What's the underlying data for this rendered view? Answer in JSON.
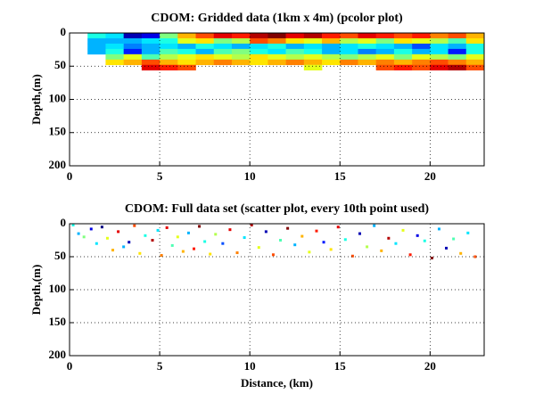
{
  "chart_data": [
    {
      "type": "pcolor",
      "title": "CDOM: Gridded data (1km x 4m) (pcolor plot)",
      "ylabel": "Depth,(m)",
      "xlim": [
        0,
        23
      ],
      "ylim": [
        0,
        200
      ],
      "y_reversed": true,
      "xticks": [
        0,
        5,
        10,
        15,
        20
      ],
      "yticks": [
        0,
        50,
        100,
        150,
        200
      ],
      "grid": true,
      "colormap": "jet",
      "x_edges": [
        1,
        2,
        3,
        4,
        5,
        6,
        7,
        8,
        9,
        10,
        11,
        12,
        13,
        14,
        15,
        16,
        17,
        18,
        19,
        20,
        21,
        22,
        23
      ],
      "y_edges": [
        0,
        8,
        16,
        24,
        32,
        40,
        48,
        56
      ],
      "values": [
        [
          0.4,
          0.35,
          0.05,
          0.1,
          0.5,
          0.7,
          0.8,
          0.9,
          0.85,
          0.95,
          1.0,
          0.9,
          0.95,
          0.85,
          0.8,
          0.9,
          0.85,
          0.8,
          0.85,
          0.75,
          0.8,
          0.7
        ],
        [
          0.3,
          0.3,
          0.3,
          0.35,
          0.4,
          0.6,
          0.65,
          0.5,
          0.55,
          0.8,
          0.75,
          0.65,
          0.6,
          0.7,
          0.55,
          0.6,
          0.5,
          0.65,
          0.6,
          0.55,
          0.45,
          0.65
        ],
        [
          0.3,
          0.35,
          0.25,
          0.3,
          0.35,
          0.3,
          0.4,
          0.35,
          0.3,
          0.35,
          0.4,
          0.3,
          0.35,
          0.3,
          0.35,
          0.4,
          0.35,
          0.3,
          0.2,
          0.35,
          0.3,
          0.4
        ],
        [
          0.3,
          0.4,
          0.15,
          0.3,
          0.45,
          0.4,
          0.3,
          0.45,
          0.5,
          0.4,
          0.35,
          0.45,
          0.4,
          0.3,
          0.35,
          0.25,
          0.3,
          0.4,
          0.3,
          0.35,
          0.15,
          0.4
        ],
        [
          null,
          0.5,
          0.6,
          0.45,
          0.55,
          0.6,
          0.65,
          0.6,
          0.55,
          0.65,
          0.6,
          0.55,
          0.6,
          0.55,
          0.5,
          0.55,
          0.6,
          0.5,
          0.6,
          0.55,
          0.5,
          0.6
        ],
        [
          null,
          0.65,
          0.7,
          0.8,
          0.7,
          0.65,
          0.7,
          0.75,
          0.7,
          0.65,
          0.7,
          0.75,
          0.7,
          0.65,
          0.75,
          0.7,
          0.75,
          0.7,
          0.75,
          0.8,
          0.75,
          0.7
        ],
        [
          null,
          null,
          null,
          0.9,
          0.85,
          0.8,
          null,
          null,
          null,
          null,
          null,
          null,
          0.6,
          null,
          null,
          null,
          0.8,
          0.85,
          0.8,
          0.9,
          0.95,
          0.8
        ]
      ]
    },
    {
      "type": "scatter",
      "title": "CDOM: Full data set (scatter plot, every 10th point used)",
      "ylabel": "Depth,(m)",
      "xlabel": "Distance, (km)",
      "xlim": [
        0,
        23
      ],
      "ylim": [
        0,
        200
      ],
      "y_reversed": true,
      "xticks": [
        0,
        5,
        10,
        15,
        20
      ],
      "yticks": [
        0,
        50,
        100,
        150,
        200
      ],
      "grid": true,
      "colormap": "jet",
      "x": [
        0.2,
        0.5,
        0.8,
        1.2,
        1.5,
        1.8,
        2.1,
        2.4,
        2.7,
        3.0,
        3.3,
        3.6,
        3.9,
        4.2,
        4.6,
        4.9,
        5.1,
        5.4,
        5.7,
        6.0,
        6.3,
        6.6,
        6.9,
        7.2,
        7.5,
        7.8,
        8.1,
        8.5,
        8.9,
        9.3,
        9.7,
        10.1,
        10.5,
        10.9,
        11.3,
        11.7,
        12.1,
        12.5,
        12.9,
        13.3,
        13.7,
        14.1,
        14.5,
        14.9,
        15.3,
        15.7,
        16.1,
        16.5,
        16.9,
        17.3,
        17.7,
        18.1,
        18.5,
        18.9,
        19.3,
        19.7,
        20.1,
        20.5,
        20.9,
        21.3,
        21.7,
        22.1,
        22.5
      ],
      "y": [
        2,
        15,
        20,
        8,
        30,
        5,
        22,
        40,
        12,
        35,
        28,
        3,
        45,
        18,
        25,
        10,
        48,
        6,
        33,
        20,
        42,
        14,
        38,
        4,
        27,
        46,
        16,
        30,
        9,
        44,
        21,
        2,
        36,
        12,
        47,
        25,
        7,
        32,
        19,
        43,
        11,
        28,
        39,
        5,
        24,
        49,
        15,
        35,
        3,
        41,
        22,
        30,
        10,
        47,
        18,
        26,
        52,
        8,
        37,
        23,
        45,
        14,
        50
      ],
      "values": [
        0.4,
        0.3,
        0.5,
        0.1,
        0.35,
        0.0,
        0.6,
        0.7,
        0.9,
        0.3,
        0.05,
        0.8,
        0.65,
        0.4,
        0.95,
        0.35,
        0.75,
        0.9,
        0.45,
        0.6,
        0.7,
        0.3,
        0.85,
        1.0,
        0.4,
        0.65,
        0.55,
        0.2,
        0.9,
        0.75,
        0.35,
        0.95,
        0.6,
        0.05,
        0.8,
        0.45,
        1.0,
        0.3,
        0.7,
        0.6,
        0.85,
        0.15,
        0.65,
        0.9,
        0.4,
        0.8,
        0.05,
        0.55,
        0.3,
        0.7,
        0.95,
        0.35,
        0.6,
        0.85,
        0.1,
        0.4,
        1.0,
        0.3,
        0.05,
        0.45,
        0.7,
        0.35,
        0.8
      ]
    }
  ]
}
